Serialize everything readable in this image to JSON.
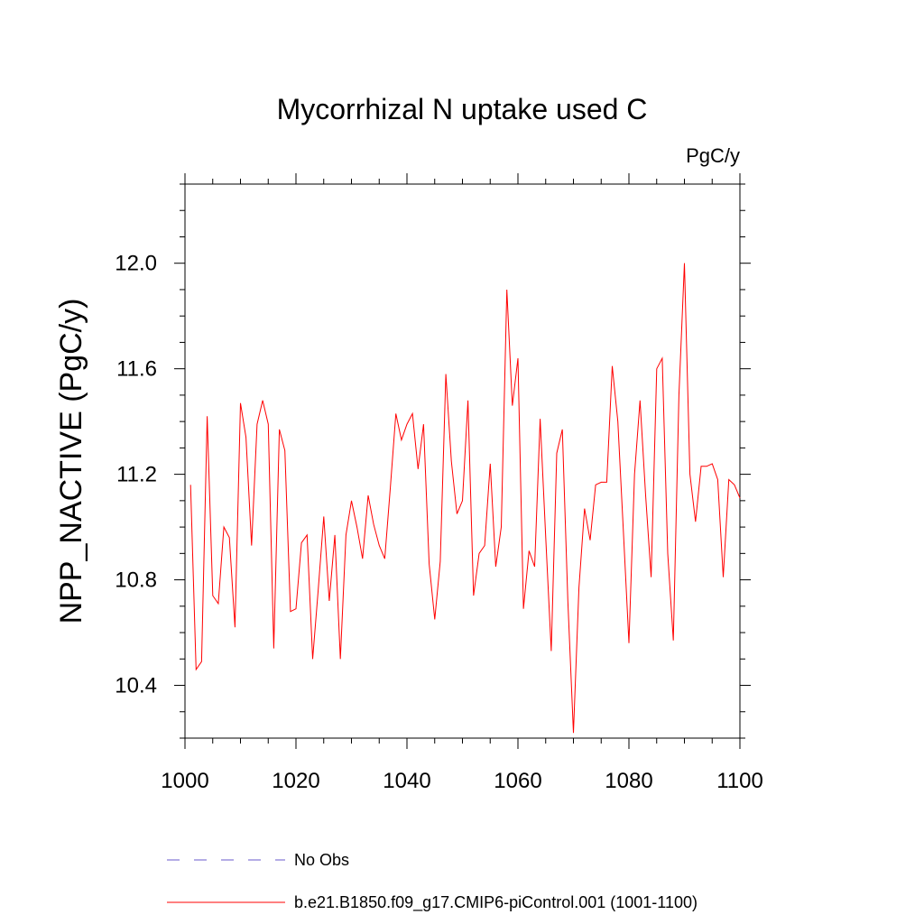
{
  "chart_data": {
    "type": "line",
    "title": "Mycorrhizal N uptake used C",
    "units": "PgC/y",
    "xlabel": "",
    "ylabel": "NPP_NACTIVE  (PgC/y)",
    "xlim": [
      1000,
      1100
    ],
    "ylim": [
      10.2,
      12.3
    ],
    "x_ticks": [
      1000,
      1020,
      1040,
      1060,
      1080,
      1100
    ],
    "x_tick_labels": [
      "1000",
      "1020",
      "1040",
      "1060",
      "1080",
      "1100"
    ],
    "y_ticks": [
      10.4,
      10.8,
      11.2,
      11.6,
      12.0
    ],
    "y_tick_labels": [
      "10.4",
      "10.8",
      "11.2",
      "11.6",
      "12.0"
    ],
    "grid": false,
    "legend_position": "bottom",
    "series": [
      {
        "name": "b.e21.B1850.f09_g17.CMIP6-piControl.001 (1001-1100)",
        "color": "#ff0000",
        "style": "solid",
        "x": [
          1001,
          1002,
          1003,
          1004,
          1005,
          1006,
          1007,
          1008,
          1009,
          1010,
          1011,
          1012,
          1013,
          1014,
          1015,
          1016,
          1017,
          1018,
          1019,
          1020,
          1021,
          1022,
          1023,
          1024,
          1025,
          1026,
          1027,
          1028,
          1029,
          1030,
          1031,
          1032,
          1033,
          1034,
          1035,
          1036,
          1037,
          1038,
          1039,
          1040,
          1041,
          1042,
          1043,
          1044,
          1045,
          1046,
          1047,
          1048,
          1049,
          1050,
          1051,
          1052,
          1053,
          1054,
          1055,
          1056,
          1057,
          1058,
          1059,
          1060,
          1061,
          1062,
          1063,
          1064,
          1065,
          1066,
          1067,
          1068,
          1069,
          1070,
          1071,
          1072,
          1073,
          1074,
          1075,
          1076,
          1077,
          1078,
          1079,
          1080,
          1081,
          1082,
          1083,
          1084,
          1085,
          1086,
          1087,
          1088,
          1089,
          1090,
          1091,
          1092,
          1093,
          1094,
          1095,
          1096,
          1097,
          1098,
          1099,
          1100
        ],
        "values": [
          11.16,
          10.46,
          10.49,
          11.42,
          10.74,
          10.71,
          11.0,
          10.96,
          10.62,
          11.47,
          11.34,
          10.93,
          11.39,
          11.48,
          11.39,
          10.54,
          11.37,
          11.29,
          10.68,
          10.69,
          10.94,
          10.97,
          10.5,
          10.76,
          11.04,
          10.72,
          10.97,
          10.5,
          10.97,
          11.1,
          11.0,
          10.88,
          11.12,
          11.01,
          10.93,
          10.88,
          11.15,
          11.43,
          11.33,
          11.39,
          11.43,
          11.22,
          11.39,
          10.86,
          10.65,
          10.87,
          11.58,
          11.25,
          11.05,
          11.1,
          11.48,
          10.74,
          10.9,
          10.93,
          11.24,
          10.85,
          11.0,
          11.9,
          11.46,
          11.64,
          10.69,
          10.91,
          10.85,
          11.41,
          10.96,
          10.53,
          11.28,
          11.37,
          10.72,
          10.22,
          10.77,
          11.07,
          10.95,
          11.16,
          11.17,
          11.17,
          11.61,
          11.4,
          10.98,
          10.56,
          11.2,
          11.48,
          11.12,
          10.81,
          11.6,
          11.64,
          10.9,
          10.57,
          11.5,
          12.0,
          11.2,
          11.02,
          11.23,
          11.23,
          11.24,
          11.18,
          10.81,
          11.18,
          11.16,
          11.11
        ]
      },
      {
        "name": "No Obs",
        "color": "#6a5acd",
        "style": "dashed",
        "x": [],
        "values": []
      }
    ]
  }
}
